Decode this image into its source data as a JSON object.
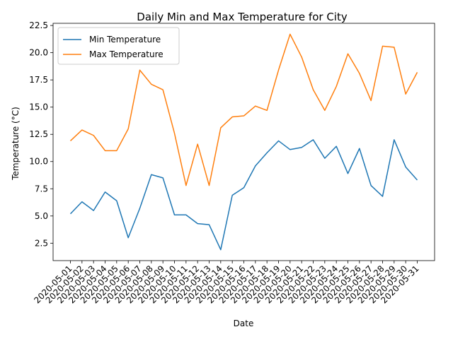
{
  "chart_data": {
    "type": "line",
    "title": "Daily Min and Max Temperature for City",
    "xlabel": "Date",
    "ylabel": "Temperature (°C)",
    "categories": [
      "2020-05-01",
      "2020-05-02",
      "2020-05-03",
      "2020-05-04",
      "2020-05-05",
      "2020-05-06",
      "2020-05-07",
      "2020-05-08",
      "2020-05-09",
      "2020-05-10",
      "2020-05-11",
      "2020-05-12",
      "2020-05-13",
      "2020-05-14",
      "2020-05-15",
      "2020-05-16",
      "2020-05-17",
      "2020-05-18",
      "2020-05-19",
      "2020-05-20",
      "2020-05-21",
      "2020-05-22",
      "2020-05-23",
      "2020-05-24",
      "2020-05-25",
      "2020-05-26",
      "2020-05-27",
      "2020-05-28",
      "2020-05-29",
      "2020-05-30",
      "2020-05-31"
    ],
    "series": [
      {
        "name": "Min Temperature",
        "color": "#1f77b4",
        "values": [
          5.2,
          6.3,
          5.5,
          7.2,
          6.4,
          3.0,
          5.7,
          8.8,
          8.5,
          5.1,
          5.1,
          4.3,
          4.2,
          1.9,
          6.9,
          7.6,
          9.6,
          10.8,
          11.9,
          11.1,
          11.3,
          12.0,
          10.3,
          11.4,
          8.9,
          11.2,
          7.8,
          6.8,
          12.0,
          9.5,
          8.3
        ]
      },
      {
        "name": "Max Temperature",
        "color": "#ff7f0e",
        "values": [
          11.9,
          12.9,
          12.4,
          11.0,
          11.0,
          13.0,
          18.4,
          17.1,
          16.6,
          12.6,
          7.8,
          11.6,
          7.8,
          13.1,
          14.1,
          14.2,
          15.1,
          14.7,
          18.4,
          21.7,
          19.6,
          16.6,
          14.7,
          16.9,
          19.9,
          18.1,
          15.6,
          20.6,
          20.5,
          16.2,
          18.2
        ]
      }
    ],
    "yticks": [
      "2.5",
      "5.0",
      "7.5",
      "10.0",
      "12.5",
      "15.0",
      "17.5",
      "20.0",
      "22.5"
    ],
    "ylim": [
      0.9,
      22.7
    ],
    "legend": "top-left",
    "grid": false
  }
}
